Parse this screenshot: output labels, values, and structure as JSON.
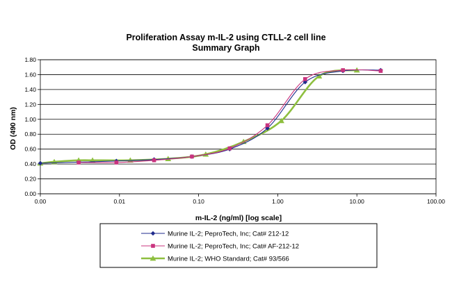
{
  "chart_data": {
    "type": "line",
    "title": "Proliferation Assay m-IL-2 using CTLL-2 cell line",
    "subtitle": "Summary Graph",
    "xlabel": "m-IL-2 (ng/ml) [log scale]",
    "ylabel": "OD (490 nm)",
    "x_scale": "log",
    "x_tick_labels": [
      "0.00",
      "0.01",
      "0.10",
      "1.00",
      "10.00",
      "100.00"
    ],
    "y_tick_labels": [
      "0.00",
      "0.20",
      "0.40",
      "0.60",
      "0.80",
      "1.00",
      "1.20",
      "1.40",
      "1.60",
      "1.80"
    ],
    "xlim": [
      0.001,
      100
    ],
    "ylim": [
      0,
      1.8
    ],
    "grid": "horizontal",
    "legend_position": "bottom",
    "series": [
      {
        "name": "Murine IL-2; PeproTech, Inc; Cat# 212-12",
        "color": "#1f2a8c",
        "marker": "diamond",
        "x": [
          0.001,
          0.00914,
          0.0274,
          0.0823,
          0.247,
          0.741,
          2.22,
          6.67,
          20
        ],
        "y": [
          0.41,
          0.44,
          0.46,
          0.5,
          0.6,
          0.88,
          1.5,
          1.65,
          1.66
        ]
      },
      {
        "name": "Murine IL-2; PeproTech, Inc; Cat# AF-212-12",
        "color": "#c9337e",
        "marker": "square",
        "x": [
          0.00305,
          0.00914,
          0.0274,
          0.0823,
          0.247,
          0.741,
          2.22,
          6.67,
          20
        ],
        "y": [
          0.42,
          0.42,
          0.45,
          0.5,
          0.61,
          0.92,
          1.54,
          1.66,
          1.65
        ]
      },
      {
        "name": "Murine IL-2; WHO Standard; Cat# 93/566",
        "color": "#8ebf3f",
        "marker": "triangle",
        "x": [
          0.001,
          0.0015,
          0.00305,
          0.00457,
          0.0137,
          0.0412,
          0.123,
          0.37,
          1.11,
          3.33,
          10
        ],
        "y": [
          0.41,
          0.43,
          0.45,
          0.45,
          0.45,
          0.47,
          0.53,
          0.7,
          0.98,
          1.58,
          1.66
        ]
      }
    ]
  }
}
